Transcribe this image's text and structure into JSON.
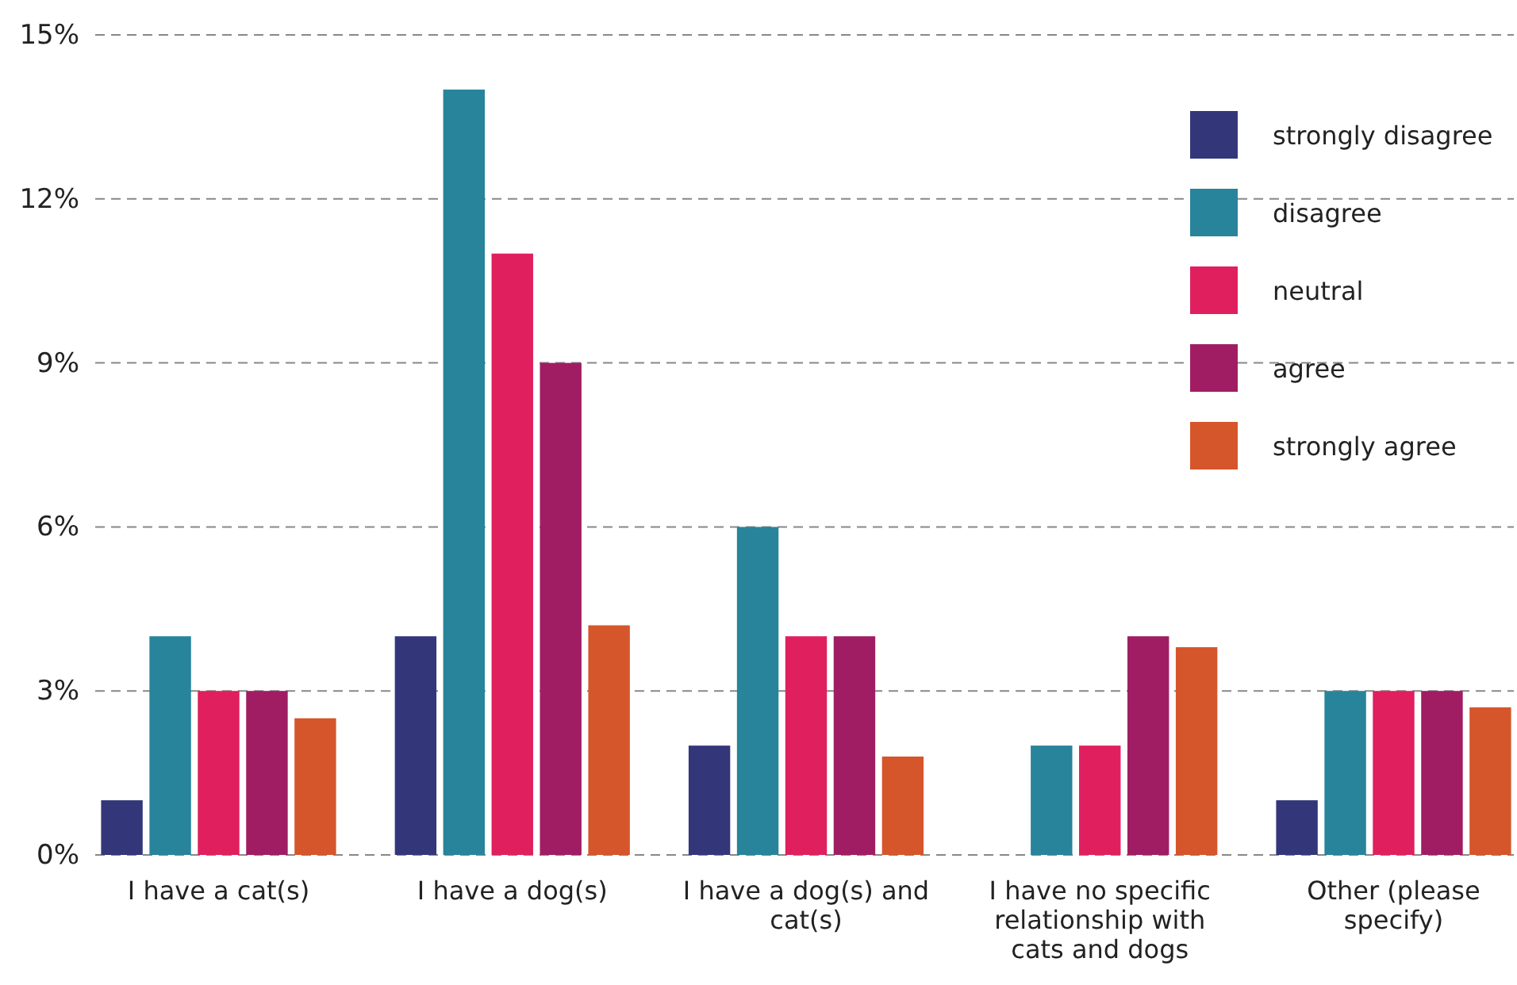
{
  "chart_data": {
    "type": "bar",
    "categories": [
      "I have a cat(s)",
      "I have a dog(s)",
      "I have a dog(s) and cat(s)",
      "I have no specific relationship with cats and dogs",
      "Other (please specify)"
    ],
    "series": [
      {
        "name": "strongly disagree",
        "color": "#33377a",
        "values": [
          1,
          4,
          2,
          0,
          1
        ]
      },
      {
        "name": "disagree",
        "color": "#27849b",
        "values": [
          4,
          14,
          6,
          2,
          3
        ]
      },
      {
        "name": "neutral",
        "color": "#e01f5f",
        "values": [
          3,
          11,
          4,
          2,
          3
        ]
      },
      {
        "name": "agree",
        "color": "#a01d63",
        "values": [
          3,
          9,
          4,
          4,
          3
        ]
      },
      {
        "name": "strongly agree",
        "color": "#d5562b",
        "values": [
          2.5,
          4.2,
          1.8,
          3.8,
          2.7
        ]
      }
    ],
    "ylim": [
      0,
      15
    ],
    "yticks": [
      {
        "value": 0,
        "label": "0%"
      },
      {
        "value": 3,
        "label": "3%"
      },
      {
        "value": 6,
        "label": "6%"
      },
      {
        "value": 9,
        "label": "9%"
      },
      {
        "value": 12,
        "label": "12%"
      },
      {
        "value": 15,
        "label": "15%"
      }
    ],
    "grid": "y",
    "legend": "top right"
  }
}
